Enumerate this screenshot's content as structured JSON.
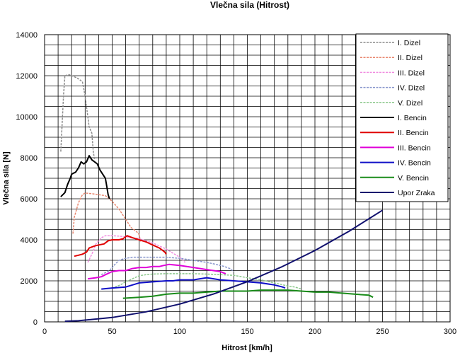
{
  "chart_data": {
    "type": "line",
    "title": "Vlečna sila (Hitrost)",
    "xlabel": "Hitrost [km/h]",
    "ylabel": "Vlečna sila [N]",
    "xlim": [
      0,
      300
    ],
    "ylim": [
      0,
      14000
    ],
    "x_ticks": [
      "0",
      "50",
      "100",
      "150",
      "200",
      "250",
      "300"
    ],
    "y_ticks": [
      "0",
      "2000",
      "4000",
      "6000",
      "8000",
      "10000",
      "12000",
      "14000"
    ],
    "grid": true,
    "legend_position": "right",
    "series": [
      {
        "name": "I. Dizel",
        "color": "#8c8c8c",
        "dash": true,
        "points": [
          [
            12,
            8300
          ],
          [
            14,
            11000
          ],
          [
            15,
            12000
          ],
          [
            18,
            12050
          ],
          [
            22,
            11950
          ],
          [
            25,
            11850
          ],
          [
            26,
            11800
          ],
          [
            28,
            11700
          ],
          [
            30,
            11000
          ],
          [
            31,
            10500
          ],
          [
            33,
            9500
          ],
          [
            35,
            9200
          ],
          [
            36,
            8300
          ],
          [
            37,
            7900
          ]
        ]
      },
      {
        "name": "II. Dizel",
        "color": "#e8876f",
        "dash": true,
        "points": [
          [
            21,
            4300
          ],
          [
            22,
            5100
          ],
          [
            25,
            5800
          ],
          [
            28,
            6200
          ],
          [
            30,
            6280
          ],
          [
            35,
            6250
          ],
          [
            40,
            6200
          ],
          [
            45,
            6150
          ],
          [
            48,
            6000
          ],
          [
            51,
            5800
          ],
          [
            55,
            5500
          ],
          [
            58,
            5200
          ],
          [
            61,
            4900
          ],
          [
            64,
            4600
          ],
          [
            68,
            4400
          ],
          [
            70,
            4250
          ],
          [
            71,
            3900
          ]
        ]
      },
      {
        "name": "III. Dizel",
        "color": "#f08ce0",
        "dash": true,
        "points": [
          [
            32,
            2900
          ],
          [
            35,
            3300
          ],
          [
            38,
            3800
          ],
          [
            42,
            4100
          ],
          [
            45,
            4200
          ],
          [
            50,
            4200
          ],
          [
            55,
            4180
          ],
          [
            60,
            4150
          ],
          [
            65,
            4100
          ],
          [
            70,
            4050
          ],
          [
            75,
            3950
          ],
          [
            80,
            3850
          ],
          [
            85,
            3700
          ],
          [
            90,
            3550
          ],
          [
            95,
            3350
          ],
          [
            100,
            3150
          ],
          [
            104,
            2900
          ]
        ]
      },
      {
        "name": "IV. Dizel",
        "color": "#8896cc",
        "dash": true,
        "points": [
          [
            42,
            2300
          ],
          [
            48,
            2500
          ],
          [
            52,
            2800
          ],
          [
            55,
            3000
          ],
          [
            60,
            3100
          ],
          [
            65,
            3150
          ],
          [
            70,
            3150
          ],
          [
            80,
            3150
          ],
          [
            90,
            3150
          ],
          [
            100,
            3100
          ],
          [
            110,
            3000
          ],
          [
            120,
            2900
          ],
          [
            127,
            2800
          ],
          [
            133,
            2700
          ],
          [
            137,
            2600
          ],
          [
            140,
            2450
          ]
        ]
      },
      {
        "name": "V. Dizel",
        "color": "#8cc88c",
        "dash": true,
        "points": [
          [
            52,
            1700
          ],
          [
            56,
            1800
          ],
          [
            60,
            1950
          ],
          [
            65,
            2100
          ],
          [
            70,
            2250
          ],
          [
            75,
            2300
          ],
          [
            80,
            2330
          ],
          [
            90,
            2350
          ],
          [
            100,
            2350
          ],
          [
            110,
            2350
          ],
          [
            120,
            2330
          ],
          [
            130,
            2300
          ],
          [
            140,
            2270
          ],
          [
            150,
            2150
          ],
          [
            160,
            2050
          ],
          [
            170,
            1900
          ],
          [
            180,
            1750
          ],
          [
            185,
            1700
          ],
          [
            190,
            1600
          ]
        ]
      },
      {
        "name": "I. Bencin",
        "color": "#000000",
        "dash": false,
        "points": [
          [
            12,
            6100
          ],
          [
            15,
            6300
          ],
          [
            17,
            6700
          ],
          [
            19,
            7000
          ],
          [
            20,
            7200
          ],
          [
            23,
            7300
          ],
          [
            25,
            7500
          ],
          [
            27,
            7800
          ],
          [
            29,
            7700
          ],
          [
            31,
            7800
          ],
          [
            33,
            8100
          ],
          [
            35,
            7900
          ],
          [
            37,
            7800
          ],
          [
            39,
            7700
          ],
          [
            41,
            7400
          ],
          [
            43,
            7200
          ],
          [
            45,
            7000
          ],
          [
            46,
            6600
          ],
          [
            47,
            6200
          ],
          [
            48,
            6000
          ]
        ]
      },
      {
        "name": "II. Bencin",
        "color": "#e00000",
        "dash": false,
        "points": [
          [
            22,
            3200
          ],
          [
            25,
            3250
          ],
          [
            28,
            3300
          ],
          [
            31,
            3400
          ],
          [
            33,
            3600
          ],
          [
            37,
            3700
          ],
          [
            40,
            3750
          ],
          [
            44,
            3800
          ],
          [
            47,
            3950
          ],
          [
            50,
            4000
          ],
          [
            55,
            4000
          ],
          [
            58,
            4050
          ],
          [
            61,
            4200
          ],
          [
            65,
            4100
          ],
          [
            70,
            4000
          ],
          [
            75,
            3900
          ],
          [
            80,
            3750
          ],
          [
            85,
            3600
          ],
          [
            89,
            3400
          ],
          [
            90,
            3300
          ]
        ]
      },
      {
        "name": "III. Bencin",
        "color": "#e000d8",
        "dash": false,
        "points": [
          [
            32,
            2100
          ],
          [
            38,
            2150
          ],
          [
            42,
            2200
          ],
          [
            45,
            2300
          ],
          [
            50,
            2450
          ],
          [
            55,
            2500
          ],
          [
            60,
            2500
          ],
          [
            65,
            2600
          ],
          [
            70,
            2650
          ],
          [
            75,
            2650
          ],
          [
            80,
            2700
          ],
          [
            85,
            2700
          ],
          [
            88,
            2750
          ],
          [
            92,
            2800
          ],
          [
            100,
            2750
          ],
          [
            110,
            2650
          ],
          [
            120,
            2550
          ],
          [
            130,
            2450
          ],
          [
            134,
            2350
          ]
        ]
      },
      {
        "name": "IV. Bencin",
        "color": "#1010c8",
        "dash": false,
        "points": [
          [
            42,
            1600
          ],
          [
            50,
            1650
          ],
          [
            60,
            1700
          ],
          [
            65,
            1800
          ],
          [
            70,
            1900
          ],
          [
            80,
            1950
          ],
          [
            90,
            2000
          ],
          [
            95,
            2000
          ],
          [
            100,
            2050
          ],
          [
            105,
            2050
          ],
          [
            110,
            2050
          ],
          [
            115,
            2100
          ],
          [
            120,
            2150
          ],
          [
            125,
            2100
          ],
          [
            130,
            2050
          ],
          [
            140,
            2000
          ],
          [
            150,
            1950
          ],
          [
            160,
            1900
          ],
          [
            170,
            1800
          ],
          [
            176,
            1700
          ],
          [
            178,
            1650
          ]
        ]
      },
      {
        "name": "V. Bencin",
        "color": "#1a8c1a",
        "dash": false,
        "points": [
          [
            58,
            1150
          ],
          [
            70,
            1200
          ],
          [
            80,
            1250
          ],
          [
            90,
            1350
          ],
          [
            100,
            1400
          ],
          [
            110,
            1400
          ],
          [
            120,
            1450
          ],
          [
            130,
            1500
          ],
          [
            140,
            1500
          ],
          [
            150,
            1500
          ],
          [
            160,
            1550
          ],
          [
            170,
            1550
          ],
          [
            180,
            1550
          ],
          [
            190,
            1500
          ],
          [
            200,
            1450
          ],
          [
            210,
            1450
          ],
          [
            220,
            1400
          ],
          [
            230,
            1350
          ],
          [
            240,
            1300
          ],
          [
            243,
            1200
          ]
        ]
      },
      {
        "name": "Upor Zraka",
        "color": "#10106e",
        "dash": false,
        "points": [
          [
            15,
            30
          ],
          [
            25,
            55
          ],
          [
            50,
            215
          ],
          [
            75,
            490
          ],
          [
            100,
            870
          ],
          [
            125,
            1360
          ],
          [
            150,
            1960
          ],
          [
            175,
            2670
          ],
          [
            200,
            3480
          ],
          [
            225,
            4410
          ],
          [
            250,
            5440
          ]
        ]
      }
    ]
  }
}
